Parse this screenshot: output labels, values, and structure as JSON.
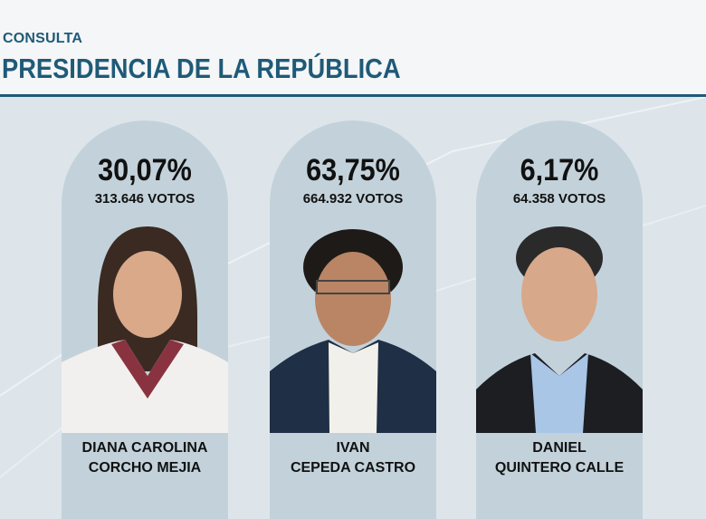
{
  "header": {
    "kicker": "CONSULTA",
    "title": "PRESIDENCIA DE LA REPÚBLICA"
  },
  "candidates": [
    {
      "percent": "30,07%",
      "votes": "313.646 VOTOS",
      "name_line1": "DIANA CAROLINA",
      "name_line2": "CORCHO MEJIA",
      "share": 30.07
    },
    {
      "percent": "63,75%",
      "votes": "664.932 VOTOS",
      "name_line1": "IVAN",
      "name_line2": "CEPEDA CASTRO",
      "share": 63.75
    },
    {
      "percent": "6,17%",
      "votes": "64.358 VOTOS",
      "name_line1": "DANIEL",
      "name_line2": "QUINTERO CALLE",
      "share": 6.17
    }
  ],
  "colors": {
    "accent": "#1f5a78",
    "card": "#c3d2da",
    "background": "#dde5ea"
  }
}
